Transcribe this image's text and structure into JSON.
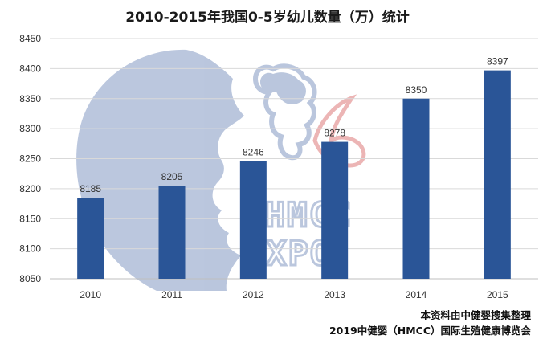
{
  "chart_data": {
    "type": "bar",
    "title": "2010-2015年我国0-5岁幼儿数量（万）统计",
    "categories": [
      "2010",
      "2011",
      "2012",
      "2013",
      "2014",
      "2015"
    ],
    "values": [
      8185,
      8205,
      8246,
      8278,
      8350,
      8397
    ],
    "data_labels": [
      "8185",
      "8205",
      "8246",
      "8278",
      "8350",
      "8397"
    ],
    "ylim": [
      8050,
      8450
    ],
    "yticks": [
      "8050",
      "8100",
      "8150",
      "8200",
      "8250",
      "8300",
      "8350",
      "8400",
      "8450"
    ],
    "xlabel": "",
    "ylabel": "",
    "grid": true,
    "bar_color": "#2a5597"
  },
  "watermark": {
    "text_line1": "HMCC",
    "text_line2": "EXPO",
    "color": "#b7c4dc"
  },
  "source": {
    "line1": "本资料由中健婴搜集整理",
    "line2": "2019中健婴（HMCC）国际生殖健康博览会"
  }
}
